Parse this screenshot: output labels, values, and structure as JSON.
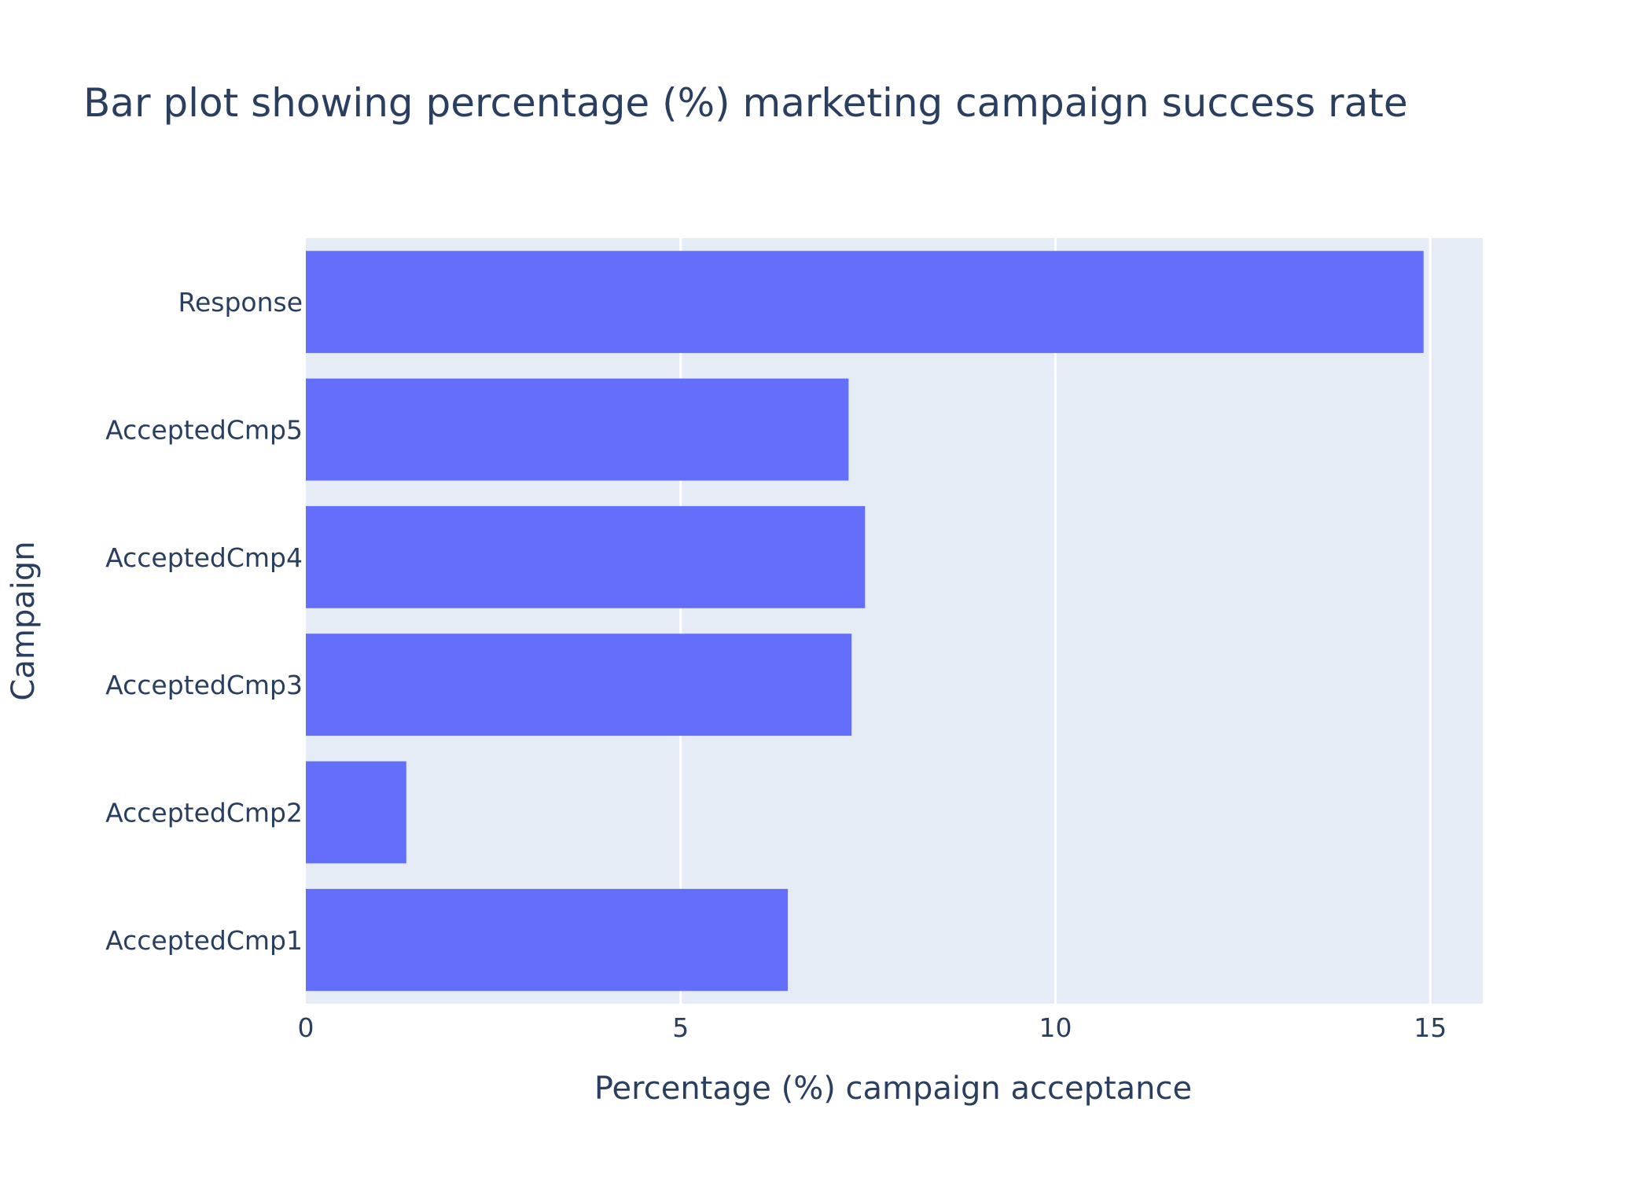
{
  "chart_data": {
    "type": "bar",
    "orientation": "horizontal",
    "title": "Bar plot showing percentage (%) marketing campaign success rate",
    "xlabel": "Percentage (%) campaign acceptance",
    "ylabel": "Campaign",
    "categories": [
      "AcceptedCmp1",
      "AcceptedCmp2",
      "AcceptedCmp3",
      "AcceptedCmp4",
      "AcceptedCmp5",
      "Response"
    ],
    "values": [
      6.43,
      1.34,
      7.28,
      7.46,
      7.24,
      14.91
    ],
    "xlim": [
      0,
      15.7
    ],
    "xticks": [
      0,
      5,
      10,
      15
    ],
    "xtick_labels": [
      "0",
      "5",
      "10",
      "15"
    ],
    "grid": true,
    "colors": {
      "bar": "#636efa",
      "plot_bg": "#e5ecf6",
      "grid": "#ffffff",
      "text": "#2a3f5f"
    }
  }
}
